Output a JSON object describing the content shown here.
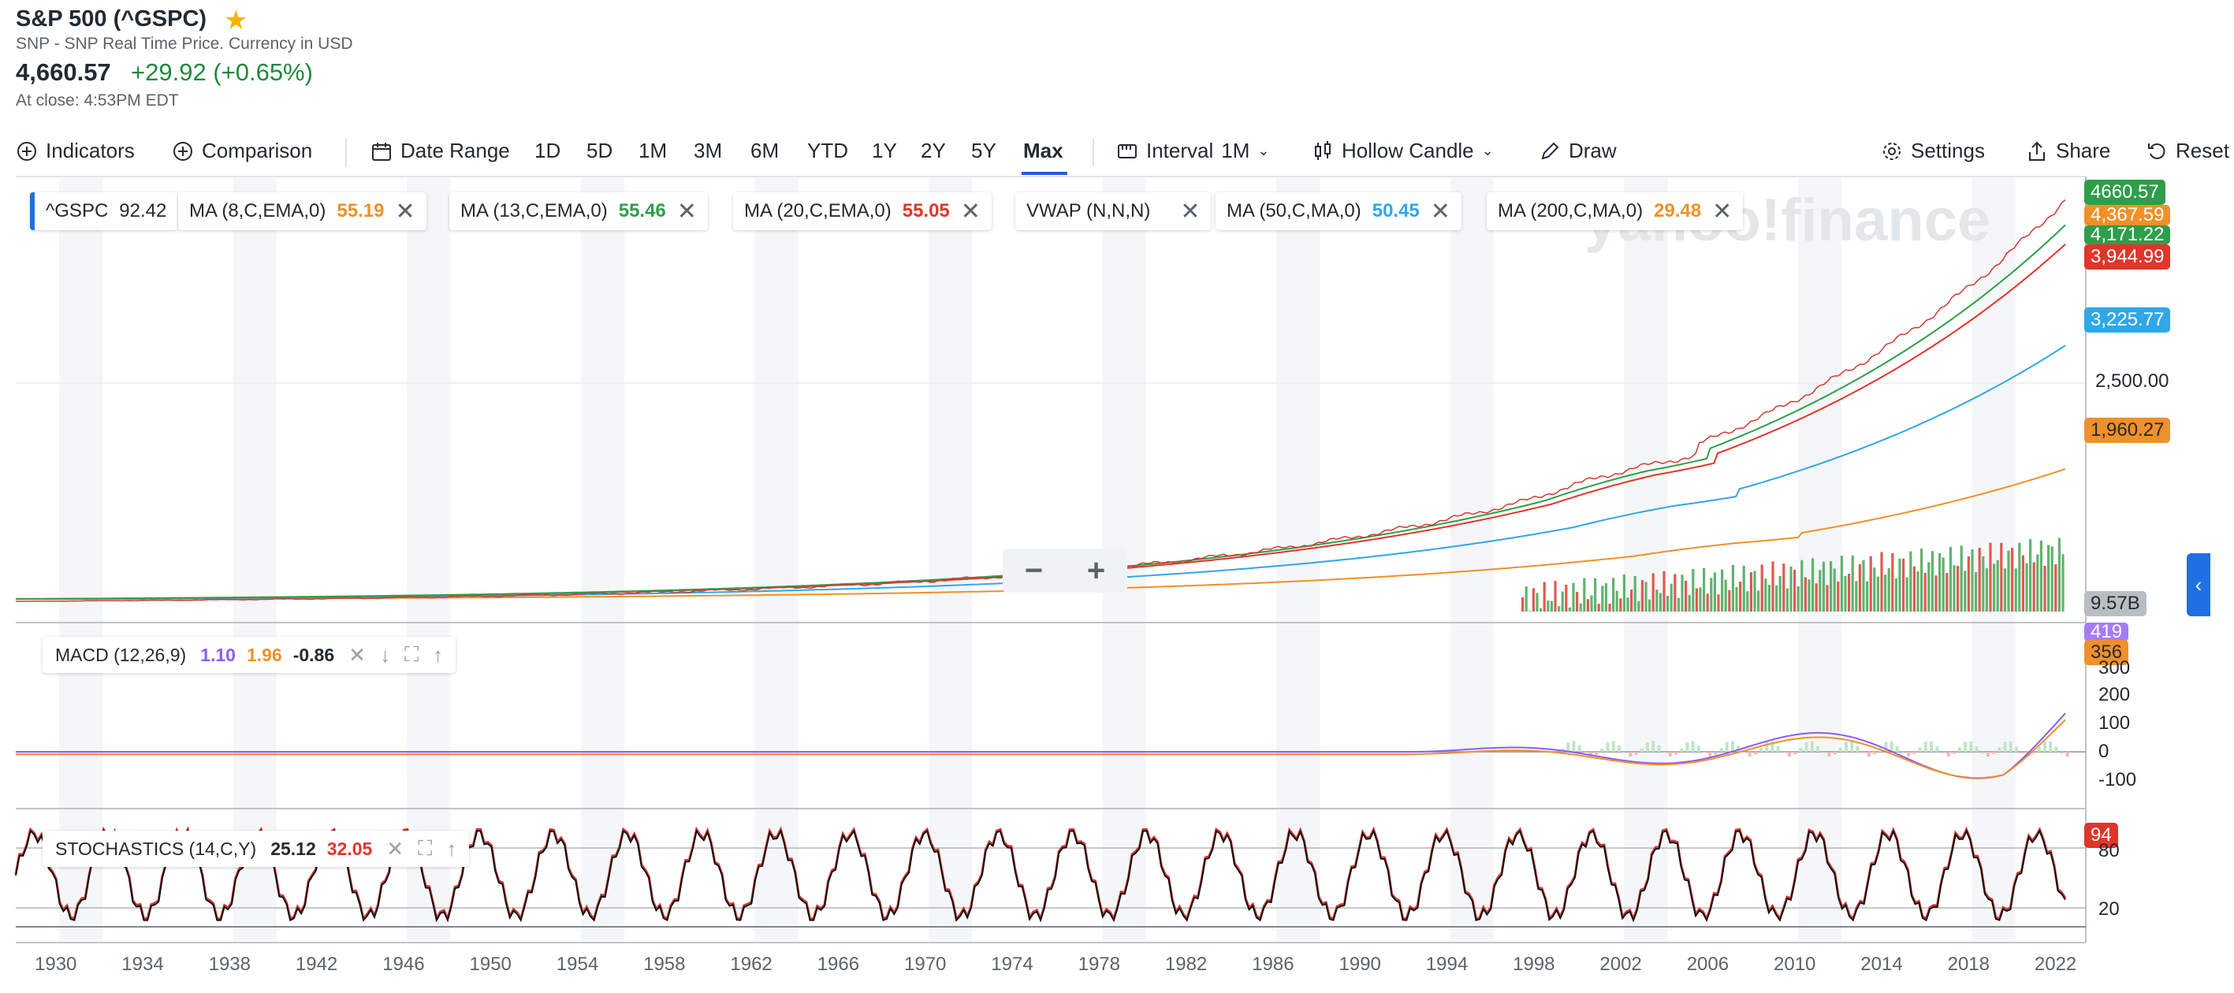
{
  "header": {
    "title": "S&P 500 (^GSPC)",
    "subtitle": "SNP - SNP Real Time Price. Currency in USD",
    "price": "4,660.57",
    "change": "+29.92 (+0.65%)",
    "close": "At close: 4:53PM EDT",
    "star_color": "#f5b400"
  },
  "toolbar": {
    "indicators": "Indicators",
    "comparison": "Comparison",
    "date_range": "Date Range",
    "ranges": [
      "1D",
      "5D",
      "1M",
      "3M",
      "6M",
      "YTD",
      "1Y",
      "2Y",
      "5Y",
      "Max"
    ],
    "selected_range": "Max",
    "interval_label": "Interval",
    "interval_value": "1M",
    "chart_type": "Hollow Candle",
    "draw": "Draw",
    "settings": "Settings",
    "share": "Share",
    "reset": "Reset"
  },
  "legend": {
    "symbol": "^GSPC",
    "symbol_value": "92.42",
    "items": [
      {
        "label": "MA (8,C,EMA,0)",
        "value": "55.19",
        "color": "#f0902a"
      },
      {
        "label": "MA (13,C,EMA,0)",
        "value": "55.46",
        "color": "#2e9e4a"
      },
      {
        "label": "MA (20,C,EMA,0)",
        "value": "55.05",
        "color": "#e0352b"
      },
      {
        "label": "VWAP (N,N,N)",
        "value": "",
        "color": "#232a31"
      },
      {
        "label": "MA (50,C,MA,0)",
        "value": "50.45",
        "color": "#2ea8e8"
      },
      {
        "label": "MA (200,C,MA,0)",
        "value": "29.48",
        "color": "#f0902a"
      }
    ]
  },
  "price_axis": {
    "tags": [
      {
        "text": "4660.57",
        "color": "#2e9e4a"
      },
      {
        "text": "4,367.59",
        "color": "#f0902a"
      },
      {
        "text": "4,171.22",
        "color": "#2e9e4a"
      },
      {
        "text": "3,944.99",
        "color": "#e0352b"
      },
      {
        "text": "3,225.77",
        "color": "#2ea8e8"
      },
      {
        "text": "2,500.00",
        "color": ""
      },
      {
        "text": "1,960.27",
        "color": "#f0902a"
      },
      {
        "text": "9.57B",
        "color": "#9aa0a6"
      }
    ]
  },
  "watermark": "yahoo!finance",
  "macd": {
    "label": "MACD (12,26,9)",
    "v1": "1.10",
    "v1_color": "#8a5cf5",
    "v2": "1.96",
    "v2_color": "#f0902a",
    "v3": "-0.86",
    "tags": [
      {
        "text": "419",
        "color": "#a37df5"
      },
      {
        "text": "356",
        "color": "#f0902a"
      }
    ],
    "ticks": [
      "300",
      "200",
      "100",
      "0",
      "-100"
    ]
  },
  "stoch": {
    "label": "STOCHASTICS (14,C,Y)",
    "v1": "25.12",
    "v2": "32.05",
    "v2_color": "#e0352b",
    "tag": "94",
    "ticks": [
      "80",
      "20"
    ]
  },
  "zoom": {
    "minus": "−",
    "plus": "+"
  },
  "side_tab": "‹",
  "years": [
    "1930",
    "1934",
    "1938",
    "1942",
    "1946",
    "1950",
    "1954",
    "1958",
    "1962",
    "1966",
    "1970",
    "1974",
    "1978",
    "1982",
    "1986",
    "1990",
    "1994",
    "1998",
    "2002",
    "2006",
    "2010",
    "2014",
    "2018",
    "2022"
  ]
}
